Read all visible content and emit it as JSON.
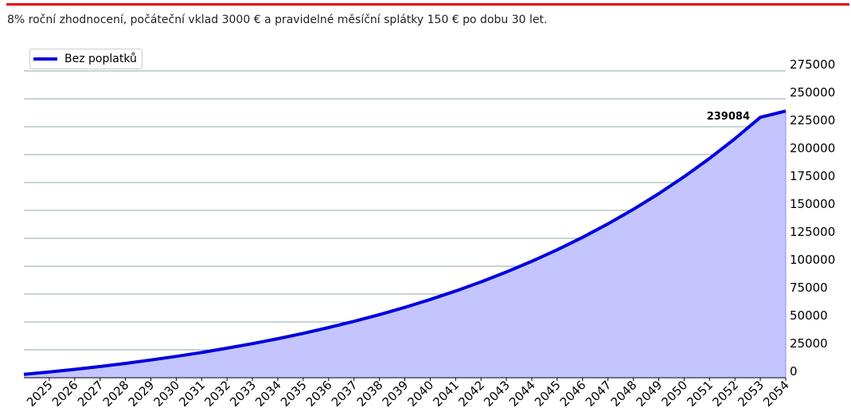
{
  "caption": "8% roční zhodnocení, počáteční vklad 3000 € a pravidelné měsíční splátky 150 € po dobu 30 let.",
  "colors": {
    "accent_bar": "#e3000f",
    "line": "#0000dd",
    "fill": "#c4c4ff",
    "grid": "#8fa9a9",
    "axis": "#000000"
  },
  "chart_data": {
    "type": "area",
    "title": "",
    "xlabel": "",
    "ylabel": "",
    "legend_position": "top-left",
    "y_axis_side": "right",
    "grid": "horizontal",
    "x_ticks": [
      "2025",
      "2026",
      "2027",
      "2028",
      "2029",
      "2030",
      "2031",
      "2032",
      "2033",
      "2034",
      "2035",
      "2036",
      "2037",
      "2038",
      "2039",
      "2040",
      "2041",
      "2042",
      "2043",
      "2044",
      "2045",
      "2046",
      "2047",
      "2048",
      "2049",
      "2050",
      "2051",
      "2052",
      "2053",
      "2054"
    ],
    "y_ticks": [
      0,
      25000,
      50000,
      75000,
      100000,
      125000,
      150000,
      175000,
      200000,
      225000,
      250000,
      275000
    ],
    "ylim": [
      0,
      275000
    ],
    "end_label": "239084",
    "series": [
      {
        "name": "Bez poplatků",
        "x": [
          2024,
          2025,
          2026,
          2027,
          2028,
          2029,
          2030,
          2031,
          2032,
          2033,
          2034,
          2035,
          2036,
          2037,
          2038,
          2039,
          2040,
          2041,
          2042,
          2043,
          2044,
          2045,
          2046,
          2047,
          2048,
          2049,
          2050,
          2051,
          2052,
          2053,
          2054
        ],
        "values": [
          3000,
          5109,
          7505,
          10091,
          12884,
          15901,
          19159,
          22678,
          26478,
          30582,
          35015,
          39802,
          44972,
          50556,
          56587,
          63100,
          70134,
          77731,
          85936,
          94797,
          104367,
          114703,
          125866,
          137922,
          150942,
          165004,
          180191,
          196593,
          214308,
          233440,
          239084
        ]
      }
    ]
  }
}
